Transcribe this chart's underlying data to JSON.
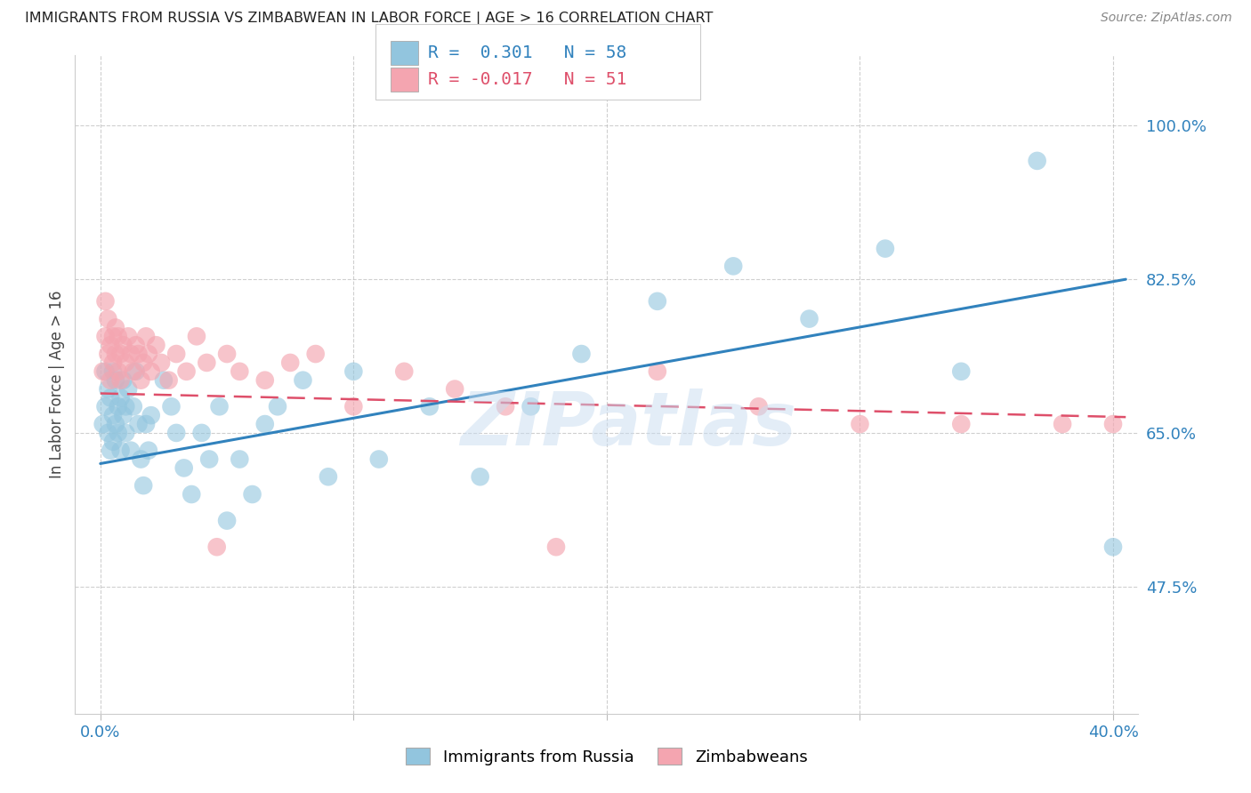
{
  "title": "IMMIGRANTS FROM RUSSIA VS ZIMBABWEAN IN LABOR FORCE | AGE > 16 CORRELATION CHART",
  "source_text": "Source: ZipAtlas.com",
  "ylabel": "In Labor Force | Age > 16",
  "xlim": [
    -0.01,
    0.41
  ],
  "ylim": [
    0.33,
    1.08
  ],
  "yticks": [
    0.475,
    0.65,
    0.825,
    1.0
  ],
  "ytick_labels": [
    "47.5%",
    "65.0%",
    "82.5%",
    "100.0%"
  ],
  "xtick_labels": [
    "0.0%",
    "",
    "",
    "",
    "40.0%"
  ],
  "xticks": [
    0.0,
    0.1,
    0.2,
    0.3,
    0.4
  ],
  "russia_R": 0.301,
  "russia_N": 58,
  "zimbabwe_R": -0.017,
  "zimbabwe_N": 51,
  "russia_color": "#92c5de",
  "zimbabwe_color": "#f4a5b0",
  "russia_line_color": "#3182bd",
  "zimbabwe_line_color": "#de4f6a",
  "legend_russia_label": "Immigrants from Russia",
  "legend_zimbabwe_label": "Zimbabweans",
  "russia_x": [
    0.001,
    0.002,
    0.002,
    0.003,
    0.003,
    0.004,
    0.004,
    0.005,
    0.005,
    0.005,
    0.006,
    0.006,
    0.007,
    0.007,
    0.008,
    0.008,
    0.009,
    0.009,
    0.01,
    0.01,
    0.011,
    0.012,
    0.013,
    0.014,
    0.015,
    0.016,
    0.017,
    0.018,
    0.019,
    0.02,
    0.025,
    0.028,
    0.03,
    0.033,
    0.036,
    0.04,
    0.043,
    0.047,
    0.05,
    0.055,
    0.06,
    0.065,
    0.07,
    0.08,
    0.09,
    0.1,
    0.11,
    0.13,
    0.15,
    0.17,
    0.19,
    0.22,
    0.25,
    0.28,
    0.31,
    0.34,
    0.37,
    0.4
  ],
  "russia_y": [
    0.66,
    0.68,
    0.72,
    0.65,
    0.7,
    0.63,
    0.69,
    0.67,
    0.64,
    0.72,
    0.66,
    0.71,
    0.65,
    0.68,
    0.63,
    0.69,
    0.67,
    0.71,
    0.65,
    0.68,
    0.7,
    0.63,
    0.68,
    0.72,
    0.66,
    0.62,
    0.59,
    0.66,
    0.63,
    0.67,
    0.71,
    0.68,
    0.65,
    0.61,
    0.58,
    0.65,
    0.62,
    0.68,
    0.55,
    0.62,
    0.58,
    0.66,
    0.68,
    0.71,
    0.6,
    0.72,
    0.62,
    0.68,
    0.6,
    0.68,
    0.74,
    0.8,
    0.84,
    0.78,
    0.86,
    0.72,
    0.96,
    0.52
  ],
  "zimbabwe_x": [
    0.001,
    0.002,
    0.002,
    0.003,
    0.003,
    0.004,
    0.004,
    0.005,
    0.005,
    0.006,
    0.006,
    0.007,
    0.007,
    0.008,
    0.008,
    0.009,
    0.01,
    0.011,
    0.012,
    0.013,
    0.014,
    0.015,
    0.016,
    0.017,
    0.018,
    0.019,
    0.02,
    0.022,
    0.024,
    0.027,
    0.03,
    0.034,
    0.038,
    0.042,
    0.046,
    0.05,
    0.055,
    0.065,
    0.075,
    0.085,
    0.1,
    0.12,
    0.14,
    0.16,
    0.18,
    0.22,
    0.26,
    0.3,
    0.34,
    0.38,
    0.4
  ],
  "zimbabwe_y": [
    0.72,
    0.76,
    0.8,
    0.74,
    0.78,
    0.75,
    0.71,
    0.76,
    0.73,
    0.77,
    0.74,
    0.72,
    0.76,
    0.74,
    0.71,
    0.75,
    0.73,
    0.76,
    0.74,
    0.72,
    0.75,
    0.74,
    0.71,
    0.73,
    0.76,
    0.74,
    0.72,
    0.75,
    0.73,
    0.71,
    0.74,
    0.72,
    0.76,
    0.73,
    0.52,
    0.74,
    0.72,
    0.71,
    0.73,
    0.74,
    0.68,
    0.72,
    0.7,
    0.68,
    0.52,
    0.72,
    0.68,
    0.66,
    0.66,
    0.66,
    0.66
  ],
  "russia_line_x": [
    0.0,
    0.405
  ],
  "russia_line_y": [
    0.615,
    0.825
  ],
  "zimbabwe_line_x": [
    0.0,
    0.405
  ],
  "zimbabwe_line_y": [
    0.695,
    0.668
  ],
  "watermark": "ZIPatlas",
  "background_color": "#ffffff",
  "grid_color": "#bbbbbb"
}
